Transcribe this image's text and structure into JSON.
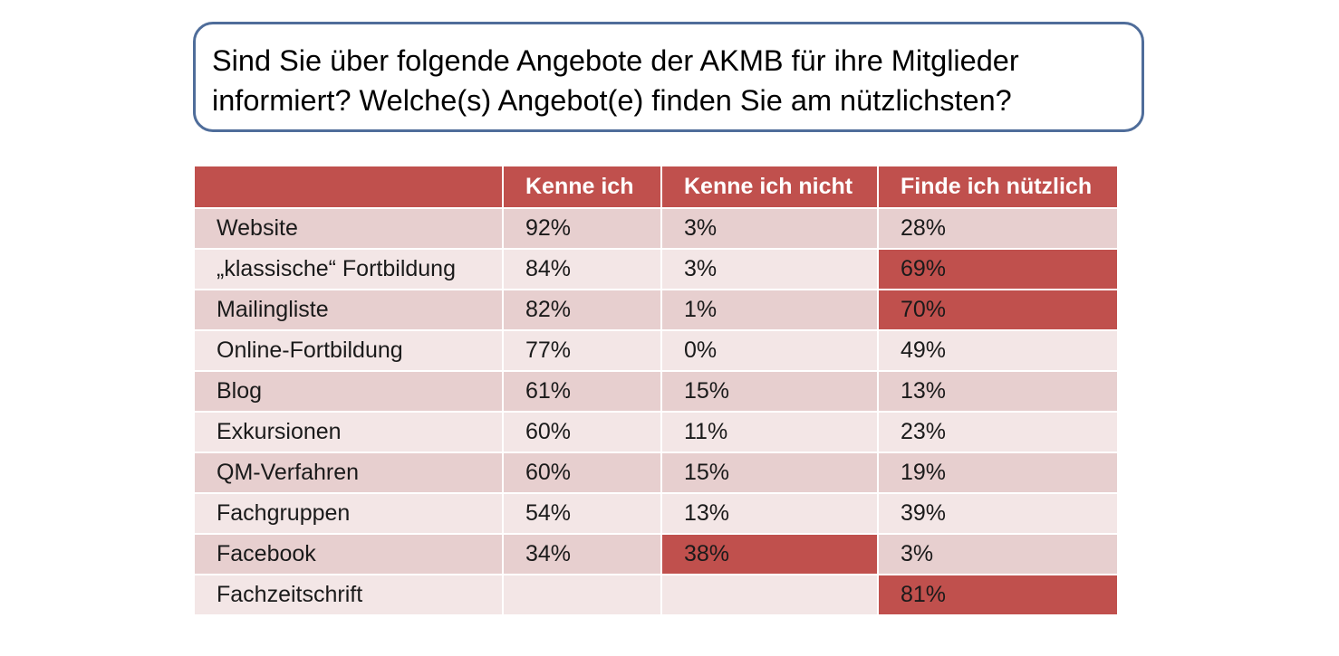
{
  "question": {
    "line1": "Sind Sie über folgende Angebote der AKMB für ihre Mitglieder",
    "line2": "informiert? Welche(s) Angebot(e) finden Sie am nützlichsten?"
  },
  "colors": {
    "header": "#c0504d",
    "highlight": "#c0504d",
    "band_dark": "#e7cfcf",
    "band_light": "#f3e6e6",
    "box_border": "#4f6d9a"
  },
  "chart_data": {
    "type": "table",
    "columns": [
      "",
      "Kenne ich",
      "Kenne ich nicht",
      "Finde ich nützlich"
    ],
    "rows": [
      {
        "label": "Website",
        "values": [
          "92%",
          "3%",
          "28%"
        ],
        "highlight": [
          false,
          false,
          false
        ]
      },
      {
        "label": "„klassische“ Fortbildung",
        "values": [
          "84%",
          "3%",
          "69%"
        ],
        "highlight": [
          false,
          false,
          true
        ]
      },
      {
        "label": "Mailingliste",
        "values": [
          "82%",
          "1%",
          "70%"
        ],
        "highlight": [
          false,
          false,
          true
        ]
      },
      {
        "label": "Online-Fortbildung",
        "values": [
          "77%",
          "0%",
          "49%"
        ],
        "highlight": [
          false,
          false,
          false
        ]
      },
      {
        "label": "Blog",
        "values": [
          "61%",
          "15%",
          "13%"
        ],
        "highlight": [
          false,
          false,
          false
        ]
      },
      {
        "label": "Exkursionen",
        "values": [
          "60%",
          "11%",
          "23%"
        ],
        "highlight": [
          false,
          false,
          false
        ]
      },
      {
        "label": "QM-Verfahren",
        "values": [
          "60%",
          "15%",
          "19%"
        ],
        "highlight": [
          false,
          false,
          false
        ]
      },
      {
        "label": "Fachgruppen",
        "values": [
          "54%",
          "13%",
          "39%"
        ],
        "highlight": [
          false,
          false,
          false
        ]
      },
      {
        "label": "Facebook",
        "values": [
          "34%",
          "38%",
          "3%"
        ],
        "highlight": [
          false,
          true,
          false
        ]
      },
      {
        "label": "Fachzeitschrift",
        "values": [
          "",
          "",
          "81%"
        ],
        "highlight": [
          false,
          false,
          true
        ]
      }
    ]
  }
}
